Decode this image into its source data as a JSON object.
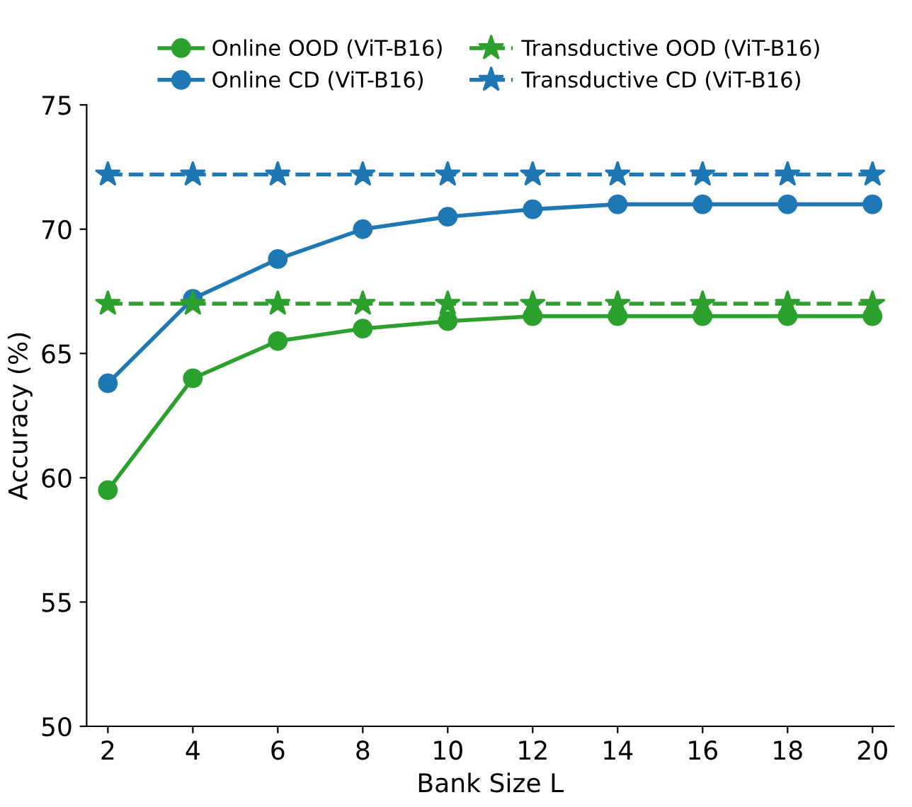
{
  "chart_data": {
    "type": "line",
    "xlabel": "Bank Size L",
    "ylabel": "Accuracy (%)",
    "x": [
      2,
      4,
      6,
      8,
      10,
      12,
      14,
      16,
      18,
      20
    ],
    "xlim": [
      1.5,
      20.5
    ],
    "xticks": [
      2,
      4,
      6,
      8,
      10,
      12,
      14,
      16,
      18,
      20
    ],
    "ylim": [
      50,
      75
    ],
    "yticks": [
      50,
      55,
      60,
      65,
      70,
      75
    ],
    "grid": false,
    "legend": "top",
    "series": [
      {
        "name": "Online OOD (ViT-B16)",
        "color": "#2ca02c",
        "marker": "circle",
        "line_style": "solid",
        "values": [
          59.5,
          64.0,
          65.5,
          66.0,
          66.3,
          66.5,
          66.5,
          66.5,
          66.5,
          66.5
        ]
      },
      {
        "name": "Online CD (ViT-B16)",
        "color": "#1f77b4",
        "marker": "circle",
        "line_style": "solid",
        "values": [
          63.8,
          67.2,
          68.8,
          70.0,
          70.5,
          70.8,
          71.0,
          71.0,
          71.0,
          71.0
        ]
      },
      {
        "name": "Transductive OOD (ViT-B16)",
        "color": "#2ca02c",
        "marker": "star",
        "line_style": "dashed",
        "values": [
          67.0,
          67.0,
          67.0,
          67.0,
          67.0,
          67.0,
          67.0,
          67.0,
          67.0,
          67.0
        ]
      },
      {
        "name": "Transductive CD (ViT-B16)",
        "color": "#1f77b4",
        "marker": "star",
        "line_style": "dashed",
        "values": [
          72.2,
          72.2,
          72.2,
          72.2,
          72.2,
          72.2,
          72.2,
          72.2,
          72.2,
          72.2
        ]
      }
    ]
  }
}
